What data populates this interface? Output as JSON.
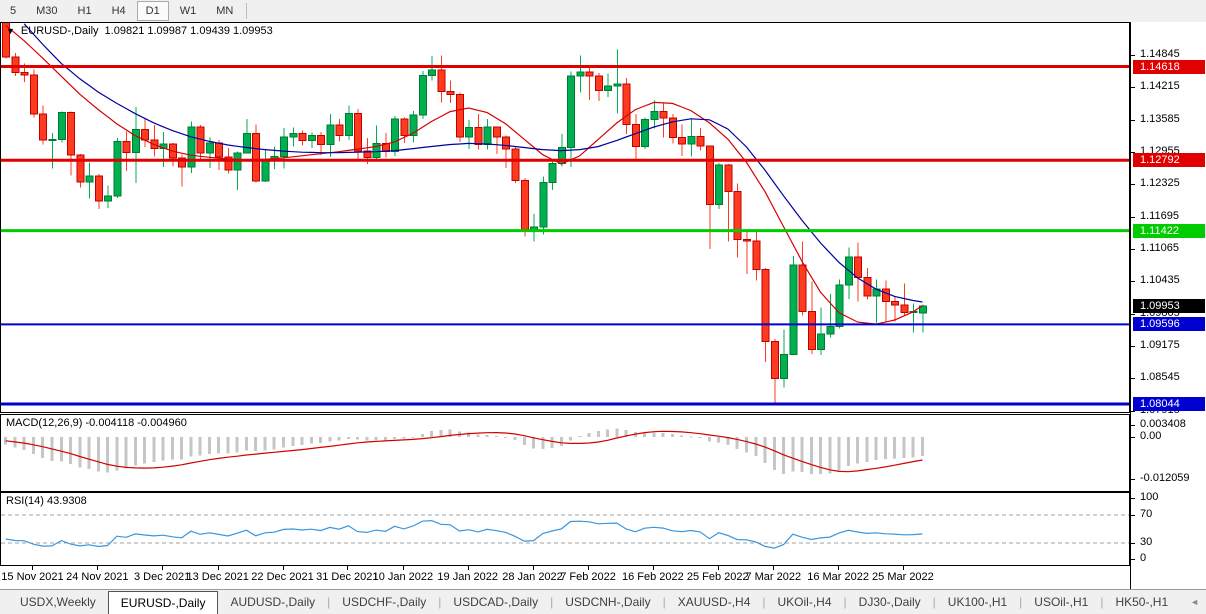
{
  "toolbar": {
    "timeframes": [
      {
        "label": "5",
        "active": false
      },
      {
        "label": "M30",
        "active": false
      },
      {
        "label": "H1",
        "active": false
      },
      {
        "label": "H4",
        "active": false
      },
      {
        "label": "D1",
        "active": true
      },
      {
        "label": "W1",
        "active": false
      },
      {
        "label": "MN",
        "active": false
      }
    ]
  },
  "chart_header": {
    "dropdown_icon": "▼",
    "symbol_label": "EURUSD-,Daily",
    "ohlc_text": "1.09821 1.09987 1.09439 1.09953"
  },
  "chart_data": {
    "type": "candlestick",
    "symbol": "EURUSD",
    "timeframe": "Daily",
    "start_date": "10 Nov 2021",
    "end_date": "29 Mar 2022",
    "last_candle_ohlc": {
      "open": 1.09821,
      "high": 1.09987,
      "low": 1.09439,
      "close": 1.09953
    },
    "price_axis_ticks": [
      "1.14845",
      "1.14215",
      "1.13585",
      "1.12955",
      "1.12325",
      "1.11695",
      "1.11065",
      "1.10435",
      "1.09805",
      "1.09175",
      "1.08545",
      "1.07915"
    ],
    "hlines": [
      {
        "price": 1.14618,
        "label": "1.14618",
        "color": "#e00000",
        "width": 3
      },
      {
        "price": 1.12792,
        "label": "1.12792",
        "color": "#e00000",
        "width": 3
      },
      {
        "price": 1.11422,
        "label": "1.11422",
        "color": "#00cc00",
        "width": 3
      },
      {
        "price": 1.09596,
        "label": "1.09596",
        "color": "#0000d0",
        "width": 2
      },
      {
        "price": 1.08044,
        "label": "1.08044",
        "color": "#0000d0",
        "width": 3
      }
    ],
    "current_price": {
      "label": "1.09953",
      "price": 1.09953,
      "box_color": "#000000"
    },
    "date_ticks": [
      {
        "i": 3,
        "label": "15 Nov 2021"
      },
      {
        "i": 10,
        "label": "24 Nov 2021"
      },
      {
        "i": 17,
        "label": "3 Dec 2021"
      },
      {
        "i": 23,
        "label": "13 Dec 2021"
      },
      {
        "i": 30,
        "label": "22 Dec 2021"
      },
      {
        "i": 37,
        "label": "31 Dec 2021"
      },
      {
        "i": 43,
        "label": "10 Jan 2022"
      },
      {
        "i": 50,
        "label": "19 Jan 2022"
      },
      {
        "i": 57,
        "label": "28 Jan 2022"
      },
      {
        "i": 63,
        "label": "7 Feb 2022"
      },
      {
        "i": 70,
        "label": "16 Feb 2022"
      },
      {
        "i": 77,
        "label": "25 Feb 2022"
      },
      {
        "i": 83,
        "label": "7 Mar 2022"
      },
      {
        "i": 90,
        "label": "16 Mar 2022"
      },
      {
        "i": 97,
        "label": "25 Mar 2022"
      }
    ],
    "candles": [
      [
        1.1592,
        1.1598,
        1.1477,
        1.148
      ],
      [
        1.148,
        1.1488,
        1.1443,
        1.145
      ],
      [
        1.145,
        1.1468,
        1.1432,
        1.1445
      ],
      [
        1.1445,
        1.1456,
        1.1363,
        1.1369
      ],
      [
        1.1369,
        1.1386,
        1.131,
        1.1319
      ],
      [
        1.1319,
        1.1332,
        1.1263,
        1.132
      ],
      [
        1.132,
        1.1374,
        1.1314,
        1.1372
      ],
      [
        1.1372,
        1.1374,
        1.125,
        1.1289
      ],
      [
        1.1289,
        1.1291,
        1.1226,
        1.1237
      ],
      [
        1.1237,
        1.1275,
        1.1205,
        1.1249
      ],
      [
        1.1249,
        1.1252,
        1.1184,
        1.12
      ],
      [
        1.12,
        1.123,
        1.1186,
        1.121
      ],
      [
        1.121,
        1.1323,
        1.1206,
        1.1316
      ],
      [
        1.1316,
        1.1335,
        1.1258,
        1.1294
      ],
      [
        1.1294,
        1.1383,
        1.1235,
        1.1339
      ],
      [
        1.1339,
        1.136,
        1.1305,
        1.1319
      ],
      [
        1.1319,
        1.1348,
        1.1287,
        1.1302
      ],
      [
        1.1302,
        1.1334,
        1.1266,
        1.1311
      ],
      [
        1.1311,
        1.1313,
        1.1267,
        1.1284
      ],
      [
        1.1284,
        1.129,
        1.1228,
        1.1266
      ],
      [
        1.1266,
        1.1355,
        1.1254,
        1.1344
      ],
      [
        1.1344,
        1.1348,
        1.128,
        1.1293
      ],
      [
        1.1293,
        1.1324,
        1.1264,
        1.1313
      ],
      [
        1.1313,
        1.1319,
        1.126,
        1.1286
      ],
      [
        1.1286,
        1.1303,
        1.1253,
        1.126
      ],
      [
        1.126,
        1.1296,
        1.1221,
        1.1293
      ],
      [
        1.1293,
        1.136,
        1.1292,
        1.1331
      ],
      [
        1.1331,
        1.1349,
        1.1236,
        1.1239
      ],
      [
        1.1239,
        1.1301,
        1.1237,
        1.1279
      ],
      [
        1.1279,
        1.1306,
        1.1262,
        1.1287
      ],
      [
        1.1287,
        1.1342,
        1.1263,
        1.1325
      ],
      [
        1.1325,
        1.1343,
        1.1306,
        1.1331
      ],
      [
        1.1331,
        1.1337,
        1.1308,
        1.1318
      ],
      [
        1.1318,
        1.1333,
        1.1303,
        1.1327
      ],
      [
        1.1327,
        1.1334,
        1.1289,
        1.131
      ],
      [
        1.131,
        1.1369,
        1.1286,
        1.1348
      ],
      [
        1.1348,
        1.136,
        1.1316,
        1.1327
      ],
      [
        1.1327,
        1.1386,
        1.1319,
        1.137
      ],
      [
        1.137,
        1.1379,
        1.1279,
        1.1297
      ],
      [
        1.1297,
        1.1323,
        1.1272,
        1.1285
      ],
      [
        1.1285,
        1.1347,
        1.1278,
        1.1312
      ],
      [
        1.1312,
        1.1332,
        1.1285,
        1.1296
      ],
      [
        1.1296,
        1.1365,
        1.1288,
        1.136
      ],
      [
        1.136,
        1.1363,
        1.1313,
        1.1327
      ],
      [
        1.1327,
        1.1375,
        1.1314,
        1.1367
      ],
      [
        1.1367,
        1.1453,
        1.136,
        1.1444
      ],
      [
        1.1444,
        1.1482,
        1.1435,
        1.1455
      ],
      [
        1.1455,
        1.1483,
        1.1392,
        1.1413
      ],
      [
        1.1413,
        1.1435,
        1.1391,
        1.1407
      ],
      [
        1.1407,
        1.1411,
        1.1315,
        1.1325
      ],
      [
        1.1325,
        1.1358,
        1.1301,
        1.1343
      ],
      [
        1.1343,
        1.1369,
        1.13,
        1.131
      ],
      [
        1.131,
        1.136,
        1.13,
        1.1344
      ],
      [
        1.1344,
        1.1344,
        1.1291,
        1.1325
      ],
      [
        1.1325,
        1.1327,
        1.1264,
        1.1301
      ],
      [
        1.1301,
        1.1307,
        1.1235,
        1.124
      ],
      [
        1.124,
        1.1245,
        1.1131,
        1.1144
      ],
      [
        1.1144,
        1.1175,
        1.1121,
        1.1149
      ],
      [
        1.1149,
        1.1248,
        1.1135,
        1.1236
      ],
      [
        1.1236,
        1.1279,
        1.1221,
        1.1273
      ],
      [
        1.1273,
        1.133,
        1.1267,
        1.1304
      ],
      [
        1.1304,
        1.1452,
        1.1266,
        1.1443
      ],
      [
        1.1443,
        1.1483,
        1.1411,
        1.1451
      ],
      [
        1.1451,
        1.1465,
        1.1397,
        1.1443
      ],
      [
        1.1443,
        1.1449,
        1.1395,
        1.1415
      ],
      [
        1.1415,
        1.1448,
        1.1402,
        1.1424
      ],
      [
        1.1424,
        1.1495,
        1.137,
        1.1428
      ],
      [
        1.1428,
        1.1439,
        1.133,
        1.1349
      ],
      [
        1.1349,
        1.1369,
        1.1278,
        1.1306
      ],
      [
        1.1306,
        1.1363,
        1.1301,
        1.1359
      ],
      [
        1.1359,
        1.1396,
        1.1341,
        1.1374
      ],
      [
        1.1374,
        1.1392,
        1.1324,
        1.1362
      ],
      [
        1.1362,
        1.1369,
        1.1312,
        1.1324
      ],
      [
        1.1324,
        1.1349,
        1.1288,
        1.1311
      ],
      [
        1.1311,
        1.1359,
        1.1287,
        1.1326
      ],
      [
        1.1326,
        1.1342,
        1.1298,
        1.1307
      ],
      [
        1.1307,
        1.1308,
        1.1106,
        1.1193
      ],
      [
        1.1193,
        1.1274,
        1.1184,
        1.127
      ],
      [
        1.127,
        1.1272,
        1.1121,
        1.1218
      ],
      [
        1.1218,
        1.1234,
        1.109,
        1.1125
      ],
      [
        1.1125,
        1.1139,
        1.1058,
        1.1122
      ],
      [
        1.1122,
        1.1143,
        1.1045,
        1.1066
      ],
      [
        1.1066,
        1.1069,
        1.0886,
        1.0926
      ],
      [
        1.0926,
        1.0931,
        1.0806,
        1.0854
      ],
      [
        1.0854,
        1.095,
        1.0837,
        1.0901
      ],
      [
        1.0901,
        1.1093,
        1.09,
        1.1075
      ],
      [
        1.1075,
        1.1121,
        1.0977,
        1.0985
      ],
      [
        1.0985,
        1.1043,
        1.0902,
        1.0911
      ],
      [
        1.0911,
        1.0992,
        1.09,
        1.0941
      ],
      [
        1.0941,
        1.1019,
        1.0934,
        1.0955
      ],
      [
        1.0955,
        1.1047,
        1.0951,
        1.1036
      ],
      [
        1.1036,
        1.1109,
        1.1009,
        1.1091
      ],
      [
        1.1091,
        1.1119,
        1.1004,
        1.1051
      ],
      [
        1.1051,
        1.1069,
        1.1008,
        1.1015
      ],
      [
        1.1015,
        1.1047,
        1.0962,
        1.1028
      ],
      [
        1.1028,
        1.1045,
        1.0963,
        1.1004
      ],
      [
        1.1004,
        1.1014,
        1.0965,
        1.0997
      ],
      [
        1.0997,
        1.1039,
        1.0977,
        1.0983
      ],
      [
        1.0983,
        1.1,
        1.0944,
        1.0985
      ],
      [
        1.09821,
        1.09987,
        1.09439,
        1.09953
      ]
    ],
    "pre_closes": [
      1.1727,
      1.169,
      1.1702,
      1.172,
      1.1695,
      1.167,
      1.1681,
      1.1599,
      1.1579,
      1.16,
      1.1586,
      1.162,
      1.1562,
      1.155,
      1.1592,
      1.1559,
      1.1574,
      1.161,
      1.1601,
      1.1589,
      1.1644,
      1.1655,
      1.1642,
      1.1612,
      1.166,
      1.1681,
      1.1598,
      1.1605,
      1.158,
      1.1615,
      1.1554,
      1.1567,
      1.159,
      1.1558,
      1.1593
    ],
    "ma_red": [
      [
        0,
        1.1542
      ],
      [
        2,
        1.1512
      ],
      [
        4,
        1.1478
      ],
      [
        6,
        1.1443
      ],
      [
        8,
        1.1408
      ],
      [
        10,
        1.1378
      ],
      [
        12,
        1.135
      ],
      [
        14,
        1.1327
      ],
      [
        16,
        1.131
      ],
      [
        18,
        1.1297
      ],
      [
        20,
        1.1289
      ],
      [
        22,
        1.1285
      ],
      [
        24,
        1.1282
      ],
      [
        26,
        1.128
      ],
      [
        28,
        1.1281
      ],
      [
        30,
        1.1284
      ],
      [
        32,
        1.1288
      ],
      [
        34,
        1.1292
      ],
      [
        36,
        1.1296
      ],
      [
        38,
        1.1301
      ],
      [
        40,
        1.1306
      ],
      [
        42,
        1.1315
      ],
      [
        44,
        1.1332
      ],
      [
        46,
        1.1355
      ],
      [
        48,
        1.1374
      ],
      [
        50,
        1.1381
      ],
      [
        52,
        1.1372
      ],
      [
        54,
        1.135
      ],
      [
        56,
        1.132
      ],
      [
        58,
        1.129
      ],
      [
        60,
        1.1272
      ],
      [
        62,
        1.1288
      ],
      [
        64,
        1.132
      ],
      [
        66,
        1.1352
      ],
      [
        68,
        1.1378
      ],
      [
        70,
        1.1392
      ],
      [
        72,
        1.139
      ],
      [
        74,
        1.1376
      ],
      [
        76,
        1.1352
      ],
      [
        78,
        1.132
      ],
      [
        80,
        1.1275
      ],
      [
        82,
        1.1218
      ],
      [
        84,
        1.115
      ],
      [
        86,
        1.1082
      ],
      [
        88,
        1.1022
      ],
      [
        90,
        1.0982
      ],
      [
        92,
        1.0964
      ],
      [
        94,
        1.096
      ],
      [
        96,
        1.0968
      ],
      [
        98,
        1.0984
      ],
      [
        99,
        1.0996
      ]
    ],
    "ma_blue": [
      [
        2,
        1.1545
      ],
      [
        4,
        1.1505
      ],
      [
        6,
        1.1468
      ],
      [
        8,
        1.1438
      ],
      [
        10,
        1.1412
      ],
      [
        12,
        1.139
      ],
      [
        14,
        1.137
      ],
      [
        16,
        1.1352
      ],
      [
        18,
        1.1337
      ],
      [
        20,
        1.1325
      ],
      [
        22,
        1.1316
      ],
      [
        24,
        1.1309
      ],
      [
        26,
        1.1304
      ],
      [
        28,
        1.13
      ],
      [
        30,
        1.1297
      ],
      [
        32,
        1.1295
      ],
      [
        34,
        1.1294
      ],
      [
        36,
        1.1294
      ],
      [
        38,
        1.1295
      ],
      [
        40,
        1.1296
      ],
      [
        42,
        1.1298
      ],
      [
        44,
        1.1302
      ],
      [
        46,
        1.1306
      ],
      [
        48,
        1.131
      ],
      [
        50,
        1.1312
      ],
      [
        52,
        1.1311
      ],
      [
        54,
        1.1308
      ],
      [
        56,
        1.1304
      ],
      [
        58,
        1.13
      ],
      [
        60,
        1.1298
      ],
      [
        62,
        1.13
      ],
      [
        64,
        1.1306
      ],
      [
        66,
        1.1318
      ],
      [
        68,
        1.1331
      ],
      [
        70,
        1.1344
      ],
      [
        72,
        1.1354
      ],
      [
        74,
        1.136
      ],
      [
        76,
        1.1358
      ],
      [
        78,
        1.134
      ],
      [
        80,
        1.1305
      ],
      [
        82,
        1.126
      ],
      [
        84,
        1.121
      ],
      [
        86,
        1.1162
      ],
      [
        88,
        1.1118
      ],
      [
        90,
        1.108
      ],
      [
        92,
        1.105
      ],
      [
        94,
        1.1028
      ],
      [
        96,
        1.1014
      ],
      [
        98,
        1.1006
      ],
      [
        99,
        1.1003
      ]
    ],
    "colors": {
      "bull_fill": "#00b050",
      "bull_stroke": "#007a33",
      "bear_fill": "#ff3b1f",
      "bear_stroke": "#c00000",
      "ma_red": "#d40000",
      "ma_blue": "#00009e",
      "macd_bar": "#c6c6c6",
      "macd_signal": "#d40000",
      "rsi_line": "#3a96dd",
      "level_dash": "#a0a0a0"
    },
    "macd": {
      "label": "MACD(12,26,9)",
      "values_text": "-0.004118 -0.004960",
      "main_value": -0.004118,
      "signal_value": -0.00496,
      "axis_labels": [
        {
          "v": 0.003408,
          "text": "0.003408"
        },
        {
          "v": 0.0,
          "text": "0.00"
        },
        {
          "v": -0.012059,
          "text": "-0.012059"
        }
      ]
    },
    "rsi": {
      "label": "RSI(14)",
      "value_text": "43.9308",
      "value": 43.9308,
      "axis_labels": [
        {
          "v": 100,
          "text": "100"
        },
        {
          "v": 70,
          "text": "70"
        },
        {
          "v": 30,
          "text": "30"
        },
        {
          "v": 0,
          "text": "0"
        }
      ],
      "levels": [
        70,
        30
      ]
    }
  },
  "tabs": {
    "items": [
      {
        "label": "USDX,Weekly",
        "active": false
      },
      {
        "label": "EURUSD-,Daily",
        "active": true
      },
      {
        "label": "AUDUSD-,Daily",
        "active": false
      },
      {
        "label": "USDCHF-,Daily",
        "active": false
      },
      {
        "label": "USDCAD-,Daily",
        "active": false
      },
      {
        "label": "USDCNH-,Daily",
        "active": false
      },
      {
        "label": "XAUUSD-,H4",
        "active": false
      },
      {
        "label": "UKOil-,H4",
        "active": false
      },
      {
        "label": "DJ30-,Daily",
        "active": false
      },
      {
        "label": "UK100-,H1",
        "active": false
      },
      {
        "label": "USOil-,H1",
        "active": false
      },
      {
        "label": "HK50-,H1",
        "active": false
      }
    ],
    "scroll_left": "◄",
    "scroll_right": "►"
  }
}
